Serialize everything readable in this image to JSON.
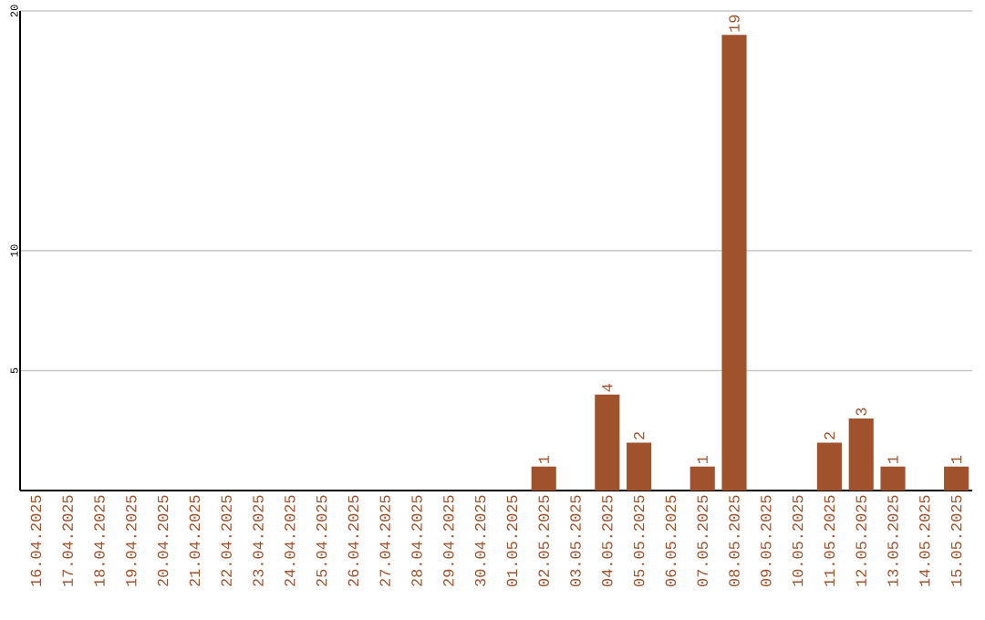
{
  "chart_data": {
    "type": "bar",
    "categories": [
      "16.04.2025",
      "17.04.2025",
      "18.04.2025",
      "19.04.2025",
      "20.04.2025",
      "21.04.2025",
      "22.04.2025",
      "23.04.2025",
      "24.04.2025",
      "25.04.2025",
      "26.04.2025",
      "27.04.2025",
      "28.04.2025",
      "29.04.2025",
      "30.04.2025",
      "01.05.2025",
      "02.05.2025",
      "03.05.2025",
      "04.05.2025",
      "05.05.2025",
      "06.05.2025",
      "07.05.2025",
      "08.05.2025",
      "09.05.2025",
      "10.05.2025",
      "11.05.2025",
      "12.05.2025",
      "13.05.2025",
      "14.05.2025",
      "15.05.2025"
    ],
    "values": [
      0,
      0,
      0,
      0,
      0,
      0,
      0,
      0,
      0,
      0,
      0,
      0,
      0,
      0,
      0,
      0,
      1,
      0,
      4,
      2,
      0,
      1,
      19,
      0,
      0,
      2,
      3,
      1,
      0,
      1
    ],
    "value_labels": [
      null,
      null,
      null,
      null,
      null,
      null,
      null,
      null,
      null,
      null,
      null,
      null,
      null,
      null,
      null,
      null,
      "1",
      null,
      "4",
      "2",
      null,
      "1",
      "19",
      null,
      null,
      "2",
      "3",
      "1",
      null,
      "1"
    ],
    "color": "#a0522d",
    "ylim": [
      0,
      20
    ],
    "yticks": [
      5,
      10,
      20
    ],
    "grid": "y"
  }
}
